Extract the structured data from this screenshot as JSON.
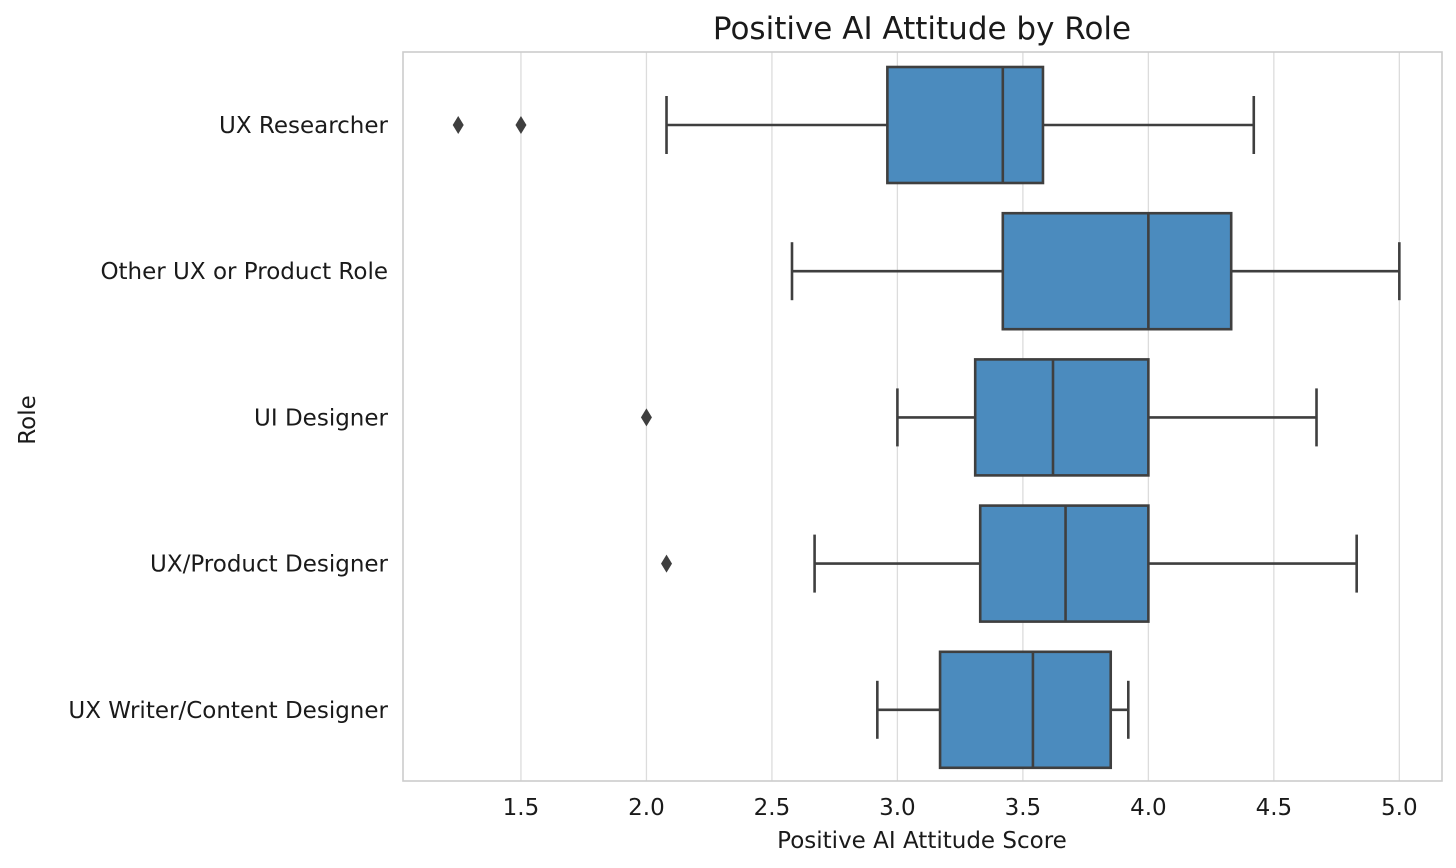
{
  "chart_data": {
    "type": "box",
    "orientation": "horizontal",
    "title": "Positive AI Attitude by Role",
    "xlabel": "Positive AI Attitude Score",
    "ylabel": "Role",
    "xlim": [
      1.03,
      5.17
    ],
    "xticks": [
      1.5,
      2.0,
      2.5,
      3.0,
      3.5,
      4.0,
      4.5,
      5.0
    ],
    "xtick_labels": [
      "1.5",
      "2.0",
      "2.5",
      "3.0",
      "3.5",
      "4.0",
      "4.5",
      "5.0"
    ],
    "grid": "vertical",
    "box_color": "#4b8bbe",
    "line_color": "#3f3f3f",
    "categories": [
      "UX Researcher",
      "Other UX or Product Role",
      "UI Designer",
      "UX/Product Designer",
      "UX Writer/Content Designer"
    ],
    "boxes": [
      {
        "category": "UX Researcher",
        "whisker_low": 2.08,
        "q1": 2.96,
        "median": 3.42,
        "q3": 3.58,
        "whisker_high": 4.42,
        "outliers": [
          1.25,
          1.5
        ]
      },
      {
        "category": "Other UX or Product Role",
        "whisker_low": 2.58,
        "q1": 3.42,
        "median": 4.0,
        "q3": 4.33,
        "whisker_high": 5.0,
        "outliers": []
      },
      {
        "category": "UI Designer",
        "whisker_low": 3.0,
        "q1": 3.31,
        "median": 3.62,
        "q3": 4.0,
        "whisker_high": 4.67,
        "outliers": [
          2.0
        ]
      },
      {
        "category": "UX/Product Designer",
        "whisker_low": 2.67,
        "q1": 3.33,
        "median": 3.67,
        "q3": 4.0,
        "whisker_high": 4.83,
        "outliers": [
          2.08
        ]
      },
      {
        "category": "UX Writer/Content Designer",
        "whisker_low": 2.92,
        "q1": 3.17,
        "median": 3.54,
        "q3": 3.85,
        "whisker_high": 3.92,
        "outliers": []
      }
    ]
  }
}
